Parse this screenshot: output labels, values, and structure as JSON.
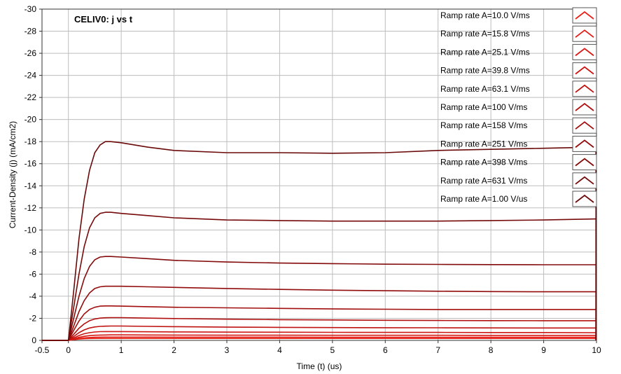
{
  "chart_data": {
    "type": "line",
    "title": "CELIV0: j vs t",
    "xlabel": "Time (t) (us)",
    "ylabel": "Current-Density (j) (mA/cm2)",
    "xlim": [
      -0.5,
      10
    ],
    "ylim": [
      0,
      -30
    ],
    "y_axis_inverted": true,
    "grid": true,
    "legend_position": "top-right",
    "x_ticks": [
      "-0.5",
      "0",
      "1",
      "2",
      "3",
      "4",
      "5",
      "6",
      "7",
      "8",
      "9",
      "10"
    ],
    "y_ticks": [
      "-30",
      "-28",
      "-26",
      "-24",
      "-22",
      "-20",
      "-18",
      "-16",
      "-14",
      "-12",
      "-10",
      "-8",
      "-6",
      "-4",
      "-2",
      "0"
    ],
    "x": [
      -0.5,
      0,
      0.1,
      0.2,
      0.3,
      0.4,
      0.5,
      0.6,
      0.7,
      0.8,
      1,
      1.5,
      2,
      3,
      4,
      5,
      6,
      7,
      8,
      9,
      9.99
    ],
    "series": [
      {
        "name": "Ramp rate A=10.0 V/ms",
        "color": "#e8231a",
        "values": [
          0,
          0,
          -0.07,
          -0.12,
          -0.15,
          -0.17,
          -0.18,
          -0.18,
          -0.18,
          -0.18,
          -0.18,
          -0.18,
          -0.18,
          -0.18,
          -0.18,
          -0.18,
          -0.18,
          -0.18,
          -0.18,
          -0.18,
          -0.18
        ]
      },
      {
        "name": "Ramp rate A=15.8 V/ms",
        "color": "#e01e17",
        "values": [
          0,
          0,
          -0.1,
          -0.18,
          -0.23,
          -0.26,
          -0.28,
          -0.29,
          -0.3,
          -0.3,
          -0.3,
          -0.3,
          -0.29,
          -0.29,
          -0.29,
          -0.28,
          -0.28,
          -0.28,
          -0.28,
          -0.28,
          -0.28
        ]
      },
      {
        "name": "Ramp rate A=25.1 V/ms",
        "color": "#d81a15",
        "values": [
          0,
          0,
          -0.14,
          -0.27,
          -0.37,
          -0.43,
          -0.46,
          -0.48,
          -0.49,
          -0.5,
          -0.5,
          -0.49,
          -0.48,
          -0.47,
          -0.47,
          -0.46,
          -0.46,
          -0.46,
          -0.45,
          -0.45,
          -0.45
        ]
      },
      {
        "name": "Ramp rate A=39.8 V/ms",
        "color": "#cc1613",
        "values": [
          0,
          0,
          -0.22,
          -0.44,
          -0.6,
          -0.7,
          -0.76,
          -0.79,
          -0.8,
          -0.8,
          -0.8,
          -0.78,
          -0.77,
          -0.75,
          -0.74,
          -0.73,
          -0.72,
          -0.72,
          -0.71,
          -0.71,
          -0.7
        ]
      },
      {
        "name": "Ramp rate A=63.1 V/ms",
        "color": "#bf1311",
        "values": [
          0,
          0,
          -0.35,
          -0.7,
          -0.95,
          -1.12,
          -1.22,
          -1.27,
          -1.29,
          -1.3,
          -1.3,
          -1.27,
          -1.24,
          -1.2,
          -1.18,
          -1.16,
          -1.15,
          -1.14,
          -1.13,
          -1.12,
          -1.12
        ]
      },
      {
        "name": "Ramp rate A=100 V/ms",
        "color": "#b0100f",
        "values": [
          0,
          0,
          -0.55,
          -1.1,
          -1.5,
          -1.78,
          -1.94,
          -2.02,
          -2.05,
          -2.06,
          -2.06,
          -2.02,
          -1.98,
          -1.92,
          -1.88,
          -1.85,
          -1.82,
          -1.8,
          -1.79,
          -1.78,
          -1.78
        ]
      },
      {
        "name": "Ramp rate A=158 V/ms",
        "color": "#a00e0d",
        "values": [
          0,
          0,
          -0.9,
          -1.75,
          -2.4,
          -2.8,
          -3.0,
          -3.1,
          -3.12,
          -3.12,
          -3.1,
          -3.05,
          -3.0,
          -2.95,
          -2.9,
          -2.85,
          -2.82,
          -2.8,
          -2.8,
          -2.8,
          -2.8
        ]
      },
      {
        "name": "Ramp rate A=251 V/ms",
        "color": "#920c0c",
        "values": [
          0,
          0,
          -1.3,
          -2.6,
          -3.6,
          -4.3,
          -4.7,
          -4.85,
          -4.9,
          -4.9,
          -4.9,
          -4.85,
          -4.8,
          -4.7,
          -4.62,
          -4.55,
          -4.5,
          -4.45,
          -4.42,
          -4.4,
          -4.4
        ]
      },
      {
        "name": "Ramp rate A=398 V/ms",
        "color": "#830b0b",
        "values": [
          0,
          0,
          -2.0,
          -4.0,
          -5.6,
          -6.7,
          -7.3,
          -7.55,
          -7.6,
          -7.6,
          -7.55,
          -7.4,
          -7.25,
          -7.1,
          -7.0,
          -6.95,
          -6.9,
          -6.88,
          -6.86,
          -6.85,
          -6.85
        ]
      },
      {
        "name": "Ramp rate A=631 V/ms",
        "color": "#760a0a",
        "values": [
          0,
          0,
          -3.0,
          -6.0,
          -8.5,
          -10.2,
          -11.1,
          -11.5,
          -11.6,
          -11.6,
          -11.5,
          -11.3,
          -11.1,
          -10.9,
          -10.85,
          -10.8,
          -10.8,
          -10.8,
          -10.85,
          -10.9,
          -11.0
        ]
      },
      {
        "name": "Ramp rate A=1.00 V/us",
        "color": "#6a0909",
        "values": [
          0,
          0,
          -4.5,
          -9.2,
          -12.8,
          -15.4,
          -17.0,
          -17.7,
          -18.0,
          -18.0,
          -17.9,
          -17.5,
          -17.2,
          -17.0,
          -17.0,
          -16.95,
          -17.0,
          -17.2,
          -17.3,
          -17.4,
          -17.5
        ]
      }
    ]
  }
}
